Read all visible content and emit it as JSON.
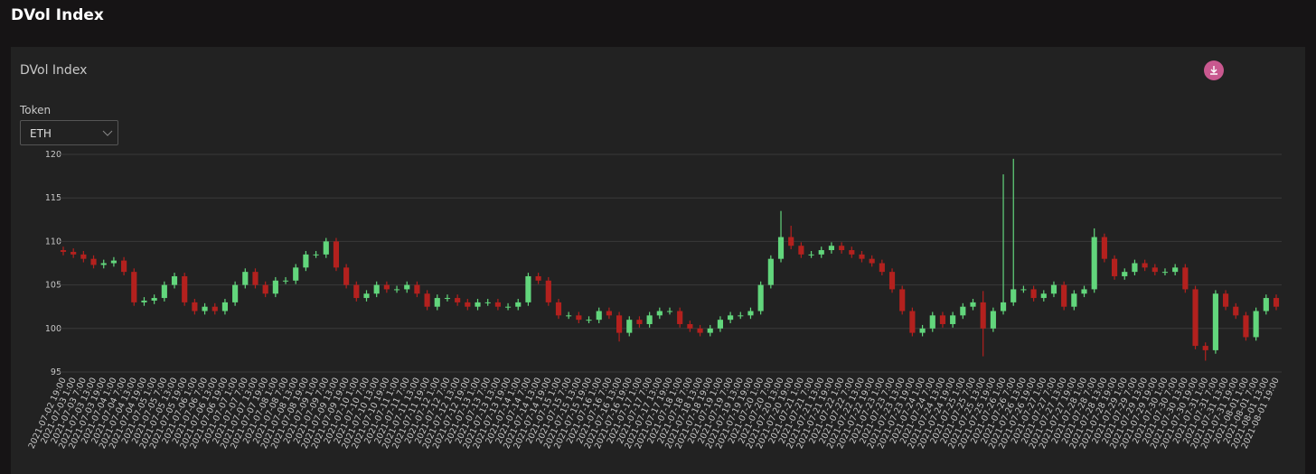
{
  "page": {
    "header": "DVol Index"
  },
  "panel": {
    "title": "DVol Index",
    "token_label": "Token",
    "token_value": "ETH"
  },
  "chart_data": {
    "type": "candlestick",
    "categories": [
      "2021-07-02 19:00",
      "2021-07-03 1:00",
      "2021-07-03 7:00",
      "2021-07-03 13:00",
      "2021-07-03 19:00",
      "2021-07-04 1:00",
      "2021-07-04 7:00",
      "2021-07-04 13:00",
      "2021-07-04 19:00",
      "2021-07-05 1:00",
      "2021-07-05 7:00",
      "2021-07-05 13:00",
      "2021-07-05 19:00",
      "2021-07-06 1:00",
      "2021-07-06 7:00",
      "2021-07-06 13:00",
      "2021-07-06 19:00",
      "2021-07-07 1:00",
      "2021-07-07 7:00",
      "2021-07-07 13:00",
      "2021-07-07 19:00",
      "2021-07-08 1:00",
      "2021-07-08 7:00",
      "2021-07-08 13:00",
      "2021-07-08 19:00",
      "2021-07-09 1:00",
      "2021-07-09 7:00",
      "2021-07-09 13:00",
      "2021-07-09 19:00",
      "2021-07-10 1:00",
      "2021-07-10 7:00",
      "2021-07-10 13:00",
      "2021-07-10 19:00",
      "2021-07-11 1:00",
      "2021-07-11 7:00",
      "2021-07-11 13:00",
      "2021-07-11 19:00",
      "2021-07-12 1:00",
      "2021-07-12 7:00",
      "2021-07-12 13:00",
      "2021-07-12 19:00",
      "2021-07-13 1:00",
      "2021-07-13 7:00",
      "2021-07-13 13:00",
      "2021-07-13 19:00",
      "2021-07-14 1:00",
      "2021-07-14 7:00",
      "2021-07-14 13:00",
      "2021-07-14 19:00",
      "2021-07-15 1:00",
      "2021-07-15 7:00",
      "2021-07-15 13:00",
      "2021-07-15 19:00",
      "2021-07-16 1:00",
      "2021-07-16 7:00",
      "2021-07-16 13:00",
      "2021-07-16 19:00",
      "2021-07-17 1:00",
      "2021-07-17 7:00",
      "2021-07-17 13:00",
      "2021-07-17 19:00",
      "2021-07-18 1:00",
      "2021-07-18 7:00",
      "2021-07-18 13:00",
      "2021-07-18 19:00",
      "2021-07-19 1:00",
      "2021-07-19 7:00",
      "2021-07-19 13:00",
      "2021-07-19 19:00",
      "2021-07-20 1:00",
      "2021-07-20 7:00",
      "2021-07-20 13:00",
      "2021-07-20 19:00",
      "2021-07-21 1:00",
      "2021-07-21 7:00",
      "2021-07-21 13:00",
      "2021-07-21 19:00",
      "2021-07-22 1:00",
      "2021-07-22 7:00",
      "2021-07-22 13:00",
      "2021-07-22 19:00",
      "2021-07-23 1:00",
      "2021-07-23 7:00",
      "2021-07-23 13:00",
      "2021-07-23 19:00",
      "2021-07-24 1:00",
      "2021-07-24 7:00",
      "2021-07-24 13:00",
      "2021-07-24 19:00",
      "2021-07-25 1:00",
      "2021-07-25 7:00",
      "2021-07-25 13:00",
      "2021-07-25 19:00",
      "2021-07-26 1:00",
      "2021-07-26 7:00",
      "2021-07-26 13:00",
      "2021-07-26 19:00",
      "2021-07-27 1:00",
      "2021-07-27 7:00",
      "2021-07-27 13:00",
      "2021-07-27 19:00",
      "2021-07-28 1:00",
      "2021-07-28 7:00",
      "2021-07-28 13:00",
      "2021-07-28 19:00",
      "2021-07-29 1:00",
      "2021-07-29 7:00",
      "2021-07-29 13:00",
      "2021-07-29 19:00",
      "2021-07-30 1:00",
      "2021-07-30 7:00",
      "2021-07-30 13:00",
      "2021-07-30 19:00",
      "2021-07-31 1:00",
      "2021-07-31 7:00",
      "2021-07-31 13:00",
      "2021-07-31 19:00",
      "2021-08-01 1:00",
      "2021-08-01 7:00",
      "2021-08-01 13:00",
      "2021-08-01 19:00"
    ],
    "open": [
      109,
      108.8,
      108.5,
      108,
      107.3,
      107.5,
      107.8,
      106.5,
      103,
      103.2,
      103.5,
      105,
      106,
      103,
      102,
      102.5,
      102,
      103,
      105,
      106.5,
      105,
      104,
      105.5,
      105.5,
      107,
      108.5,
      108.5,
      110,
      107,
      105,
      103.5,
      104,
      105,
      104.5,
      104.5,
      105,
      104,
      102.5,
      103.5,
      103.5,
      103,
      102.5,
      103,
      103,
      102.5,
      102.5,
      103,
      106,
      105.5,
      103,
      101.5,
      101.5,
      101,
      101,
      102,
      101.5,
      99.5,
      101,
      100.5,
      101.5,
      102,
      102,
      100.5,
      100,
      99.5,
      100,
      101,
      101.5,
      101.5,
      102,
      105,
      108,
      110.5,
      109.5,
      108.5,
      108.5,
      109,
      109.5,
      109,
      108.5,
      108,
      107.5,
      106.5,
      104.5,
      102,
      99.5,
      100,
      101.5,
      100.5,
      101.5,
      102.5,
      103,
      100,
      102,
      103,
      104.5,
      104.5,
      103.5,
      104,
      105,
      102.5,
      104,
      104.5,
      110.5,
      108,
      106,
      106.5,
      107.5,
      107,
      106.5,
      106.5,
      107,
      104.5,
      98,
      97.5,
      104,
      102.5,
      101.5,
      99,
      102,
      103.5
    ],
    "high": [
      109.4,
      109.2,
      108.9,
      108.4,
      107.9,
      108.2,
      108.2,
      106.9,
      103.6,
      103.9,
      105.4,
      106.4,
      106.4,
      103.4,
      102.9,
      102.9,
      103.4,
      105.4,
      106.9,
      106.9,
      105.4,
      105.9,
      105.9,
      107.4,
      108.9,
      108.9,
      110.4,
      110.4,
      107.4,
      105.4,
      104.4,
      105.4,
      105.4,
      104.9,
      105.4,
      105.4,
      104.4,
      103.9,
      103.9,
      103.9,
      103.4,
      103.4,
      103.4,
      103.4,
      102.9,
      103.4,
      106.4,
      106.4,
      105.9,
      103.4,
      101.9,
      101.9,
      101.4,
      102.4,
      102.4,
      101.9,
      101.4,
      101.4,
      101.9,
      102.4,
      102.4,
      102.4,
      100.9,
      100.4,
      100.4,
      101.4,
      101.9,
      101.9,
      102.4,
      105.4,
      108.4,
      113.5,
      111.8,
      109.9,
      108.9,
      109.4,
      109.9,
      109.9,
      109.4,
      108.9,
      108.4,
      107.9,
      106.9,
      104.9,
      102.4,
      100.4,
      101.9,
      101.9,
      101.9,
      102.9,
      103.4,
      104.3,
      102.4,
      117.7,
      119.5,
      104.9,
      104.9,
      104.4,
      105.4,
      105.4,
      104.4,
      104.9,
      111.5,
      110.9,
      108.4,
      106.9,
      107.9,
      107.9,
      107.4,
      106.9,
      107.4,
      107.4,
      104.9,
      98.4,
      104.4,
      104.4,
      102.9,
      101.9,
      102.4,
      103.9,
      103.9
    ],
    "low": [
      108.4,
      108.1,
      107.6,
      106.9,
      106.9,
      107.1,
      106.1,
      102.6,
      102.6,
      102.8,
      103.1,
      104.6,
      102.6,
      101.6,
      101.6,
      101.6,
      101.6,
      102.6,
      104.6,
      104.6,
      103.6,
      103.6,
      105.1,
      105.1,
      106.6,
      108.1,
      108.1,
      106.6,
      104.6,
      103.1,
      103.1,
      103.6,
      104.1,
      104.1,
      104.1,
      103.6,
      102.1,
      102.1,
      103.1,
      102.6,
      102.1,
      102.1,
      102.6,
      102.1,
      102.1,
      102.1,
      102.6,
      105.1,
      102.6,
      101.1,
      101.1,
      100.6,
      100.6,
      100.6,
      101.1,
      98.5,
      99.1,
      100.1,
      100.1,
      101.1,
      101.6,
      100.1,
      99.6,
      99.1,
      99.1,
      99.6,
      100.6,
      101.1,
      101.1,
      101.6,
      104.6,
      107.6,
      109.1,
      108.1,
      108.1,
      108.1,
      108.6,
      108.6,
      108.1,
      107.6,
      107.1,
      106.1,
      104.1,
      101.6,
      99.1,
      99.1,
      99.6,
      100.1,
      100.1,
      101.1,
      102.1,
      96.8,
      99.6,
      101.6,
      102.6,
      104.1,
      103.1,
      103.1,
      103.6,
      102.1,
      102.1,
      103.6,
      104.1,
      107.6,
      105.6,
      105.6,
      106.1,
      106.6,
      106.1,
      106.1,
      106.1,
      104.1,
      97.6,
      96.3,
      97.1,
      102.1,
      101.1,
      98.6,
      98.6,
      101.6,
      102.1
    ],
    "close": [
      108.8,
      108.5,
      108,
      107.3,
      107.5,
      107.8,
      106.5,
      103,
      103.2,
      103.5,
      105,
      106,
      103,
      102,
      102.5,
      102,
      103,
      105,
      106.5,
      105,
      104,
      105.5,
      105.5,
      107,
      108.5,
      108.5,
      110,
      107,
      105,
      103.5,
      104,
      105,
      104.5,
      104.5,
      105,
      104,
      102.5,
      103.5,
      103.5,
      103,
      102.5,
      103,
      103,
      102.5,
      102.5,
      103,
      106,
      105.5,
      103,
      101.5,
      101.5,
      101,
      101,
      102,
      101.5,
      99.5,
      101,
      100.5,
      101.5,
      102,
      102,
      100.5,
      100,
      99.5,
      100,
      101,
      101.5,
      101.5,
      102,
      105,
      108,
      110.5,
      109.5,
      108.5,
      108.5,
      109,
      109.5,
      109,
      108.5,
      108,
      107.5,
      106.5,
      104.5,
      102,
      99.5,
      100,
      101.5,
      100.5,
      101.5,
      102.5,
      103,
      100,
      102,
      103,
      104.5,
      104.5,
      103.5,
      104,
      105,
      102.5,
      104,
      104.5,
      110.5,
      108,
      106,
      106.5,
      107.5,
      107,
      106.5,
      106.5,
      107,
      104.5,
      98,
      97.5,
      104,
      102.5,
      101.5,
      99,
      102,
      103.5,
      102.5
    ],
    "ylim": [
      95,
      120
    ],
    "yticks": [
      95,
      100,
      105,
      110,
      115,
      120
    ],
    "grid": true,
    "up_color": "#62d67c",
    "down_color": "#b3211e"
  }
}
